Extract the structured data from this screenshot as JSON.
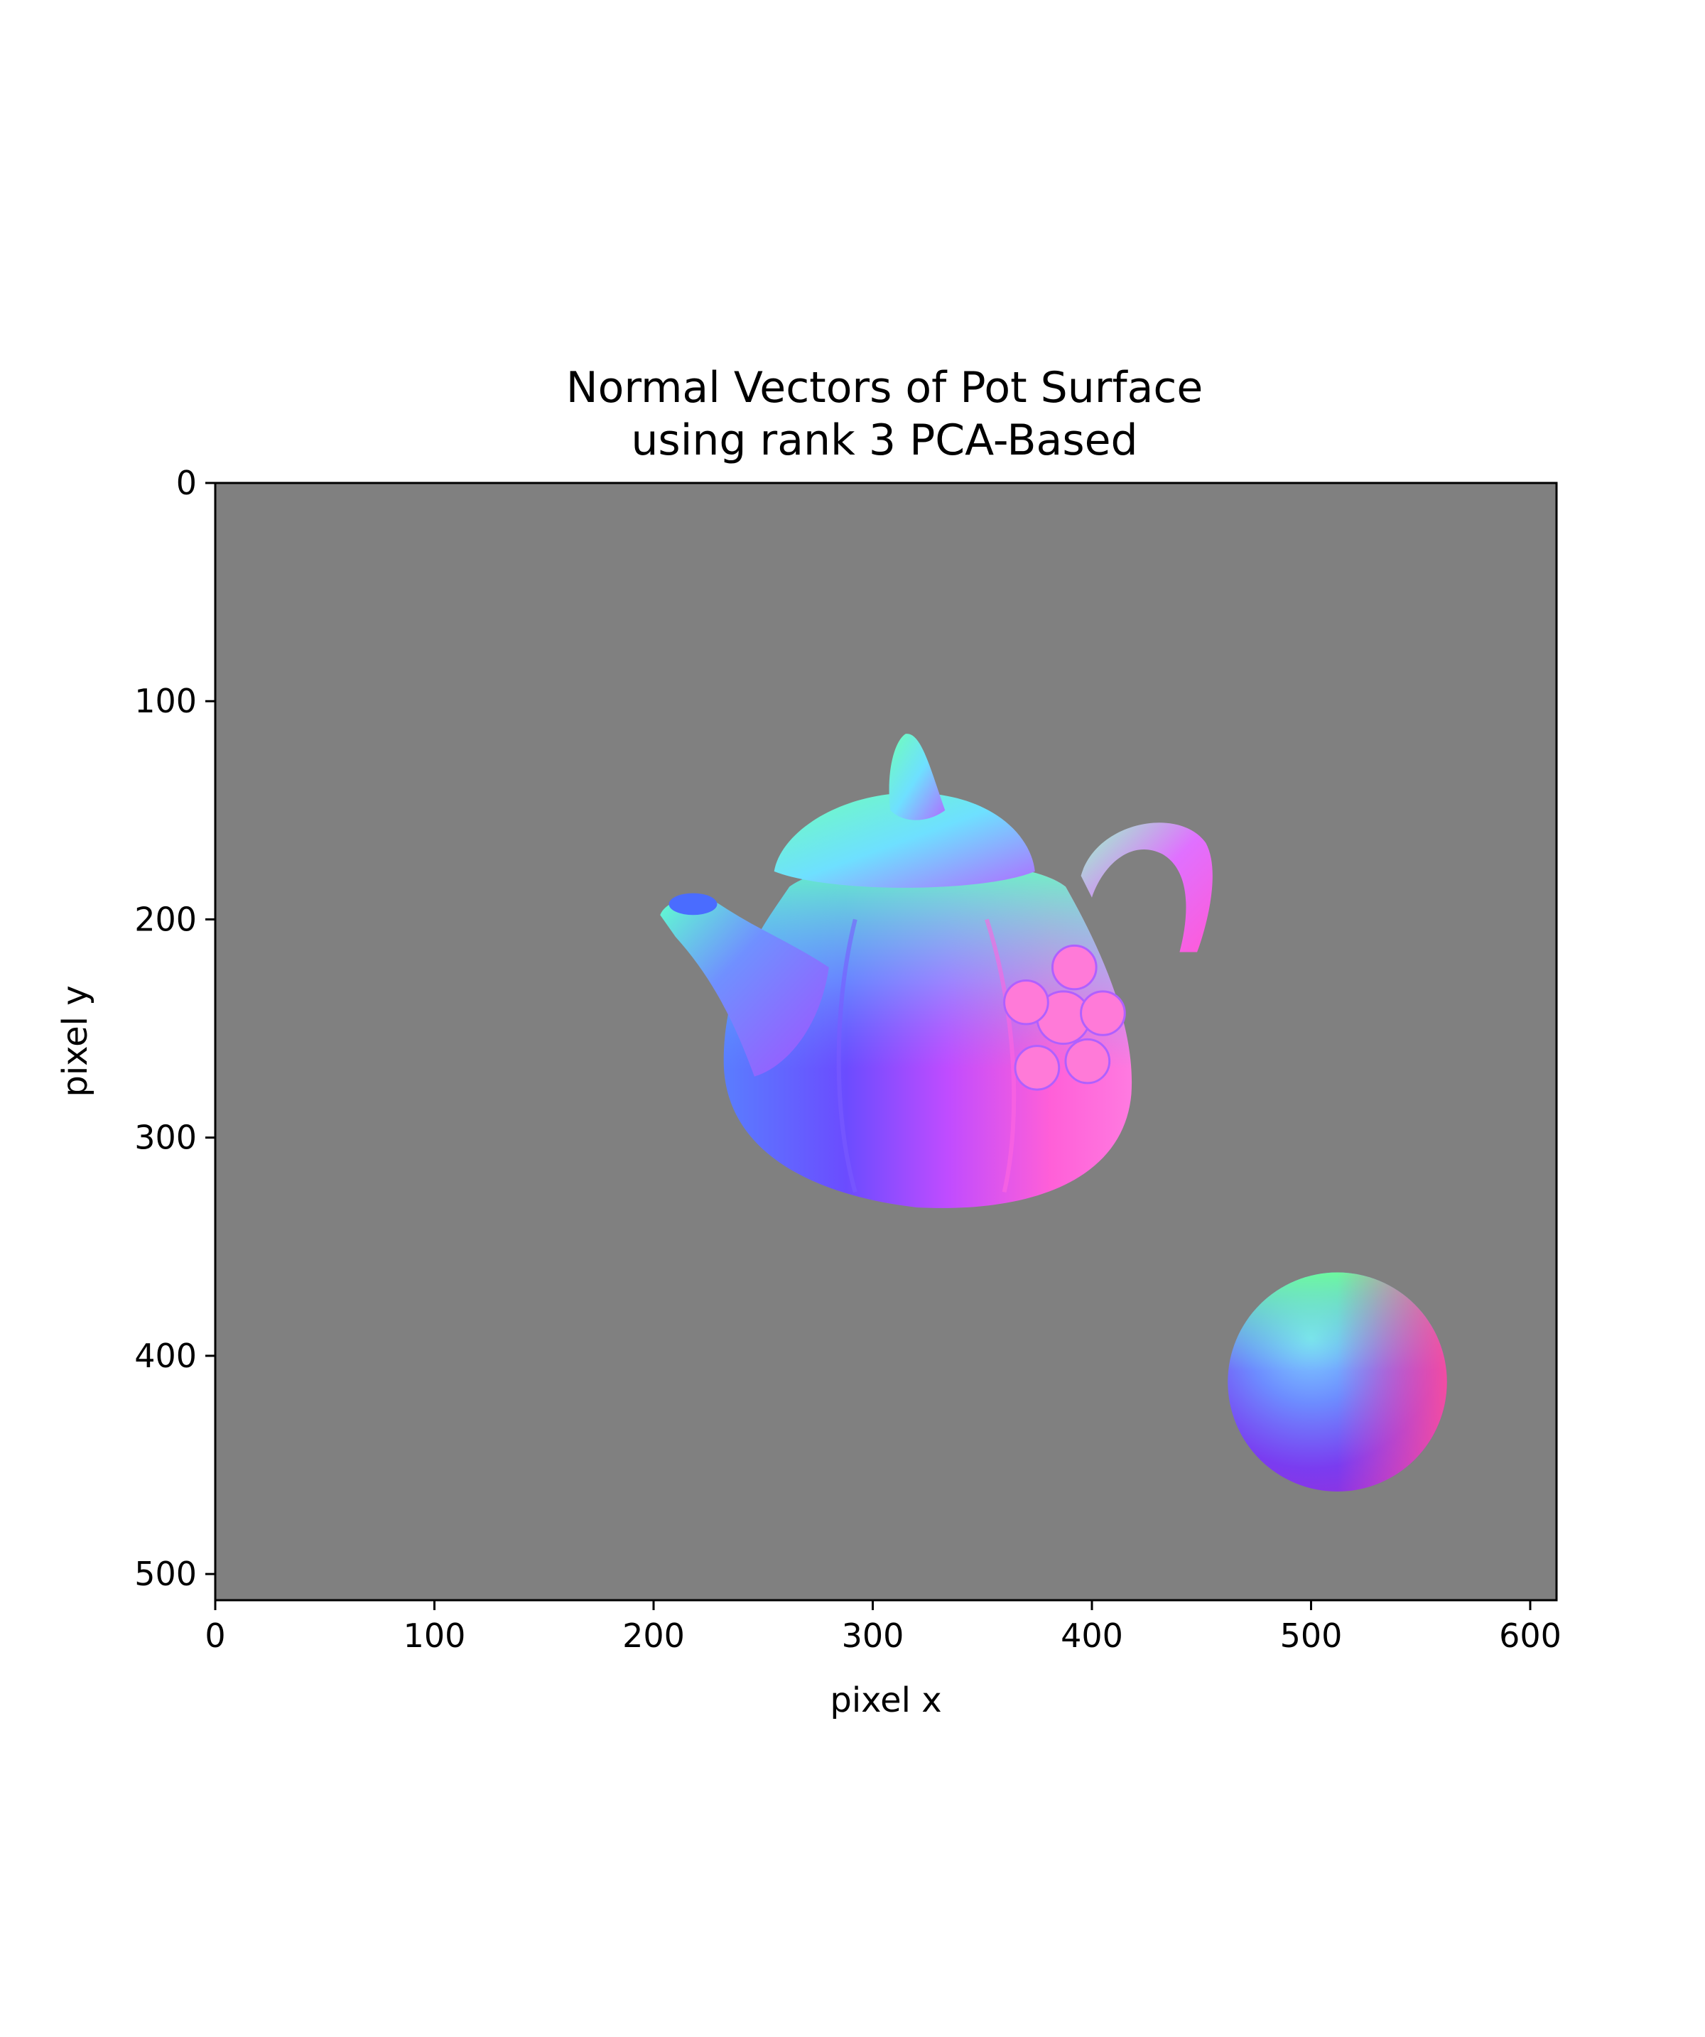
{
  "chart_data": {
    "type": "image",
    "title": [
      "Normal Vectors of Pot Surface",
      "using rank 3 PCA-Based"
    ],
    "xlabel": "pixel x",
    "ylabel": "pixel y",
    "xlim": [
      0,
      612
    ],
    "ylim": [
      512,
      0
    ],
    "xticks": [
      0,
      100,
      200,
      300,
      400,
      500,
      600
    ],
    "yticks": [
      0,
      100,
      200,
      300,
      400,
      500
    ],
    "background_color": "#808080",
    "objects": [
      {
        "name": "teapot",
        "x_range": [
          203,
          448
        ],
        "y_range": [
          114,
          335
        ]
      },
      {
        "name": "sphere",
        "center": [
          512,
          412
        ],
        "radius": 50
      }
    ],
    "colors": {
      "cyan_green": "#66ffb0",
      "blue": "#4d6cff",
      "magenta": "#ff55dd",
      "violet": "#8a3cff",
      "pink": "#ff5aa0"
    }
  }
}
